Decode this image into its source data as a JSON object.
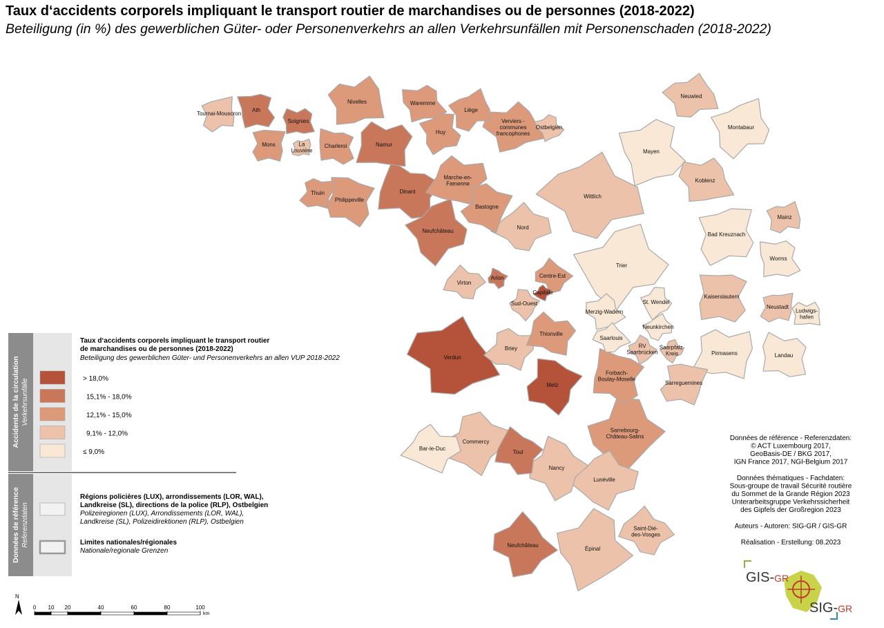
{
  "header": {
    "title": "Taux d‘accidents corporels impliquant le transport routier de marchandises ou de personnes (2018-2022)",
    "subtitle": "Beteiligung (in %) des gewerblichen Güter- oder Personenverkehrs an allen Verkehrsunfällen mit Personenschaden (2018-2022)"
  },
  "legend": {
    "section_1": {
      "label": "Accidents de la circulation",
      "label_de": "Verkehrsunfälle"
    },
    "title": [
      "Taux d‘accidents corporels impliquant le transport routier",
      "de marchandises ou de personnes (2018-2022)"
    ],
    "title_de": "Beteiligung des gewerblichen Güter- und Personenverkehrs an allen VUP 2018-2022",
    "classes": [
      {
        "label": "> 18,0%",
        "color": "#b5533a"
      },
      {
        "label": "15,1% - 18,0%",
        "color": "#c9775a"
      },
      {
        "label": "12,1% - 15,0%",
        "color": "#dc9a7b"
      },
      {
        "label": "9,1% - 12,0%",
        "color": "#ecc3aa"
      },
      {
        "label": "≤ 9,0%",
        "color": "#f9e8d6"
      }
    ],
    "section_2": {
      "label": "Données de référence",
      "label_de": "Referenzdaten"
    },
    "reference": [
      {
        "label": [
          "Régions policières (LUX), arrondissements (LOR, WAL),",
          "Landkreise (SL), directions de la police (RLP), Ostbelgien"
        ],
        "label_de": [
          "Polizeiregionen (LUX), Arrondissements (LOR, WAL),",
          "Landkreise (SL), Polizeidirektionen (RLP), Ostbelgien"
        ]
      },
      {
        "label": [
          "Limites nationales/régionales"
        ],
        "label_de": [
          "Nationale/regionale Grenzen"
        ]
      }
    ]
  },
  "regions": [
    {
      "label": "Verdun",
      "color": "#b5533a"
    },
    {
      "label": "Épinal",
      "color": "#ecc3aa"
    },
    {
      "label": "Trier",
      "color": "#f9e8d6"
    },
    {
      "label": "Wittlich",
      "color": "#ecc3aa"
    },
    {
      "label": "Neufchâteau",
      "color": "#c9775a"
    },
    {
      "label": "Sarrebourg-\nChâteau-Salins",
      "color": "#dc9a7b"
    },
    {
      "label": "Lunéville",
      "color": "#ecc3aa"
    },
    {
      "label": "Saint-Dié-\ndes-Vosges",
      "color": "#ecc3aa"
    },
    {
      "label": "Nancy",
      "color": "#ecc3aa"
    },
    {
      "label": "Commercy",
      "color": "#ecc3aa"
    },
    {
      "label": "Bar-le-Duc",
      "color": "#f9e8d6"
    },
    {
      "label": "Toul",
      "color": "#c9775a"
    },
    {
      "label": "Metz",
      "color": "#b5533a"
    },
    {
      "label": "Briey",
      "color": "#ecc3aa"
    },
    {
      "label": "Thionville",
      "color": "#dc9a7b"
    },
    {
      "label": "Forbach-\nBoulay-Moselle",
      "color": "#dc9a7b"
    },
    {
      "label": "Sarreguemines",
      "color": "#ecc3aa"
    },
    {
      "label": "Pirmasens",
      "color": "#f9e8d6"
    },
    {
      "label": "Landau",
      "color": "#f9e8d6"
    },
    {
      "label": "Kaiserslautern",
      "color": "#ecc3aa"
    },
    {
      "label": "Neustadt",
      "color": "#ecc3aa"
    },
    {
      "label": "Ludwigs-\nhafen",
      "color": "#f9e8d6"
    },
    {
      "label": "Worms",
      "color": "#f9e8d6"
    },
    {
      "label": "Bad Kreuznach",
      "color": "#f9e8d6"
    },
    {
      "label": "Mainz",
      "color": "#ecc3aa"
    },
    {
      "label": "Koblenz",
      "color": "#ecc3aa"
    },
    {
      "label": "Mayen",
      "color": "#f9e8d6"
    },
    {
      "label": "Montabaur",
      "color": "#f9e8d6"
    },
    {
      "label": "Neuwied",
      "color": "#ecc3aa"
    },
    {
      "label": "Merzig-Wadern",
      "color": "#f9e8d6"
    },
    {
      "label": "St. Wendel",
      "color": "#f9e8d6"
    },
    {
      "label": "Neunkirchen",
      "color": "#f9e8d6"
    },
    {
      "label": "Saarlouis",
      "color": "#f9e8d6"
    },
    {
      "label": "RV\nSaarbrücken",
      "color": "#ecc3aa"
    },
    {
      "label": "Saarpfalz-\nKreis",
      "color": "#ecc3aa"
    },
    {
      "label": "Nord",
      "color": "#ecc3aa"
    },
    {
      "label": "Centre-Est",
      "color": "#dc9a7b"
    },
    {
      "label": "Sud-Ouest",
      "color": "#ecc3aa"
    },
    {
      "label": "Capitale",
      "color": "#b5533a"
    },
    {
      "label": "Virton",
      "color": "#ecc3aa"
    },
    {
      "label": "Arlon",
      "color": "#c9775a"
    },
    {
      "label": "Bastogne",
      "color": "#dc9a7b"
    },
    {
      "label": "Marche-en-\nFamenne",
      "color": "#dc9a7b"
    },
    {
      "label": "Dinant",
      "color": "#c9775a"
    },
    {
      "label": "Philippeville",
      "color": "#dc9a7b"
    },
    {
      "label": "Thuin",
      "color": "#dc9a7b"
    },
    {
      "label": "Namur",
      "color": "#c9775a"
    },
    {
      "label": "Charleroi",
      "color": "#dc9a7b"
    },
    {
      "label": "Mons",
      "color": "#dc9a7b"
    },
    {
      "label": "La\nLouvière",
      "color": "#ecc3aa"
    },
    {
      "label": "Soignies",
      "color": "#c9775a"
    },
    {
      "label": "Ath",
      "color": "#c9775a"
    },
    {
      "label": "Tournai-Mouscron",
      "color": "#ecc3aa"
    },
    {
      "label": "Nivelles",
      "color": "#dc9a7b"
    },
    {
      "label": "Waremme",
      "color": "#dc9a7b"
    },
    {
      "label": "Huy",
      "color": "#dc9a7b"
    },
    {
      "label": "Liège",
      "color": "#dc9a7b"
    },
    {
      "label": "Verviers -\ncommunes\nfrancophones",
      "color": "#dc9a7b"
    },
    {
      "label": "Ostbelgien",
      "color": "#ecc3aa"
    },
    {
      "label": "Neufchâteau",
      "color": "#c9775a"
    }
  ],
  "sources": [
    [
      "Données de référence - Referenzdaten:",
      "© ACT Luxembourg 2017,",
      "GeoBasis-DE / BKG 2017,",
      "IGN France 2017, NGI-Belgium 2017"
    ],
    [
      "Données thématiques - Fachdaten:",
      "Sous-groupe de travail Sécurité routière",
      "du Sommet de la Grande Région 2023",
      "Unterarbeitsgruppe Verkehrssicherheit",
      "des Gipfels der Großregion 2023"
    ],
    [
      "Auteurs - Autoren: SIG-GR / GIS-GR"
    ],
    [
      "Réalisation - Erstellung: 08.2023"
    ]
  ],
  "scale": {
    "ticks": [
      0,
      10,
      20,
      40,
      60,
      80,
      100
    ],
    "unit": "km"
  },
  "north": "N",
  "logo": {
    "top": "GIS-",
    "top_suffix": "GR",
    "bottom": "SIG-",
    "bottom_suffix": "GR"
  }
}
